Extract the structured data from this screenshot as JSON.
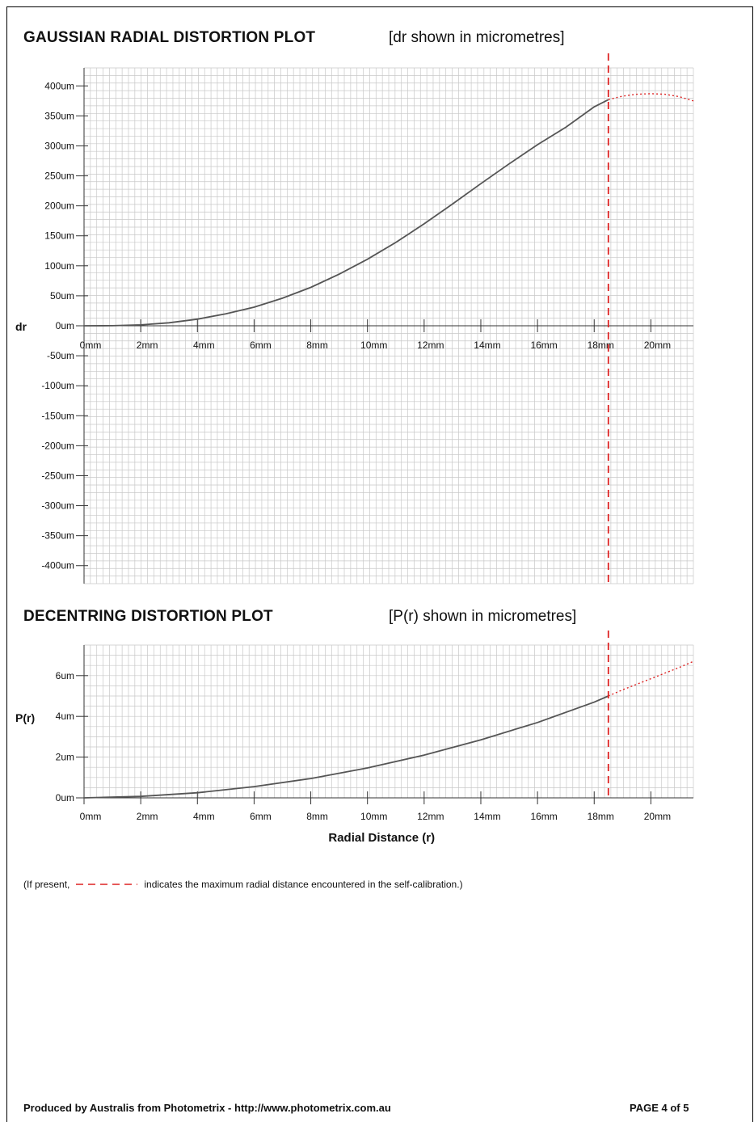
{
  "page": {
    "footer_left": "Produced by Australis from Photometrix - http://www.photometrix.com.au",
    "footer_right": "PAGE 4 of 5",
    "legend_note_prefix": "(If present,",
    "legend_note_suffix": "indicates the maximum radial distance encountered in the self-calibration.)",
    "colors": {
      "curve": "#555555",
      "marker": "#dd2222",
      "grid": "#c8c8c8",
      "axis": "#333333"
    }
  },
  "chart_data": [
    {
      "type": "line",
      "title": "GAUSSIAN RADIAL DISTORTION PLOT",
      "subtitle": "[dr shown in micrometres]",
      "ylabel": "dr",
      "xlabel": "",
      "x_unit": "mm",
      "y_unit": "um",
      "xlim": [
        0,
        21.5
      ],
      "ylim": [
        -430,
        430
      ],
      "x_ticks": [
        "0mm",
        "2mm",
        "4mm",
        "6mm",
        "8mm",
        "10mm",
        "12mm",
        "14mm",
        "16mm",
        "18mm",
        "20mm"
      ],
      "y_ticks": [
        "400um",
        "350um",
        "300um",
        "250um",
        "200um",
        "150um",
        "100um",
        "50um",
        "0um",
        "-50um",
        "-100um",
        "-150um",
        "-200um",
        "-250um",
        "-300um",
        "-350um",
        "-400um"
      ],
      "max_radial_distance_mm": 18.5,
      "grid": true,
      "series": [
        {
          "x": [
            0,
            1,
            2,
            3,
            4,
            5,
            6,
            7,
            8,
            9,
            10,
            11,
            12,
            13,
            14,
            15,
            16,
            17,
            18,
            18.5
          ],
          "values": [
            0,
            0.2,
            1.5,
            5,
            11,
            20,
            31,
            46,
            64,
            86,
            111,
            139,
            170,
            203,
            237,
            270,
            302,
            331,
            365,
            377
          ]
        },
        {
          "style": "dotted-extrapolation",
          "x": [
            18.5,
            19,
            19.5,
            20,
            20.5,
            21,
            21.5
          ],
          "values": [
            377,
            383,
            386,
            387,
            386,
            382,
            375
          ]
        }
      ]
    },
    {
      "type": "line",
      "title": "DECENTRING DISTORTION PLOT",
      "subtitle": "[P(r) shown in micrometres]",
      "ylabel": "P(r)",
      "xlabel": "Radial Distance (r)",
      "x_unit": "mm",
      "y_unit": "um",
      "xlim": [
        0,
        21.5
      ],
      "ylim": [
        0,
        7.5
      ],
      "x_ticks": [
        "0mm",
        "2mm",
        "4mm",
        "6mm",
        "8mm",
        "10mm",
        "12mm",
        "14mm",
        "16mm",
        "18mm",
        "20mm"
      ],
      "y_ticks": [
        "6um",
        "4um",
        "2um",
        "0um"
      ],
      "max_radial_distance_mm": 18.5,
      "grid": true,
      "series": [
        {
          "x": [
            0,
            2,
            4,
            6,
            8,
            10,
            12,
            14,
            16,
            18,
            18.5
          ],
          "values": [
            0,
            0.07,
            0.25,
            0.55,
            0.95,
            1.47,
            2.1,
            2.85,
            3.7,
            4.7,
            5.0
          ]
        },
        {
          "style": "dotted-extrapolation",
          "x": [
            18.5,
            19,
            20,
            21,
            21.5
          ],
          "values": [
            5.0,
            5.3,
            5.85,
            6.4,
            6.7
          ]
        }
      ]
    }
  ]
}
